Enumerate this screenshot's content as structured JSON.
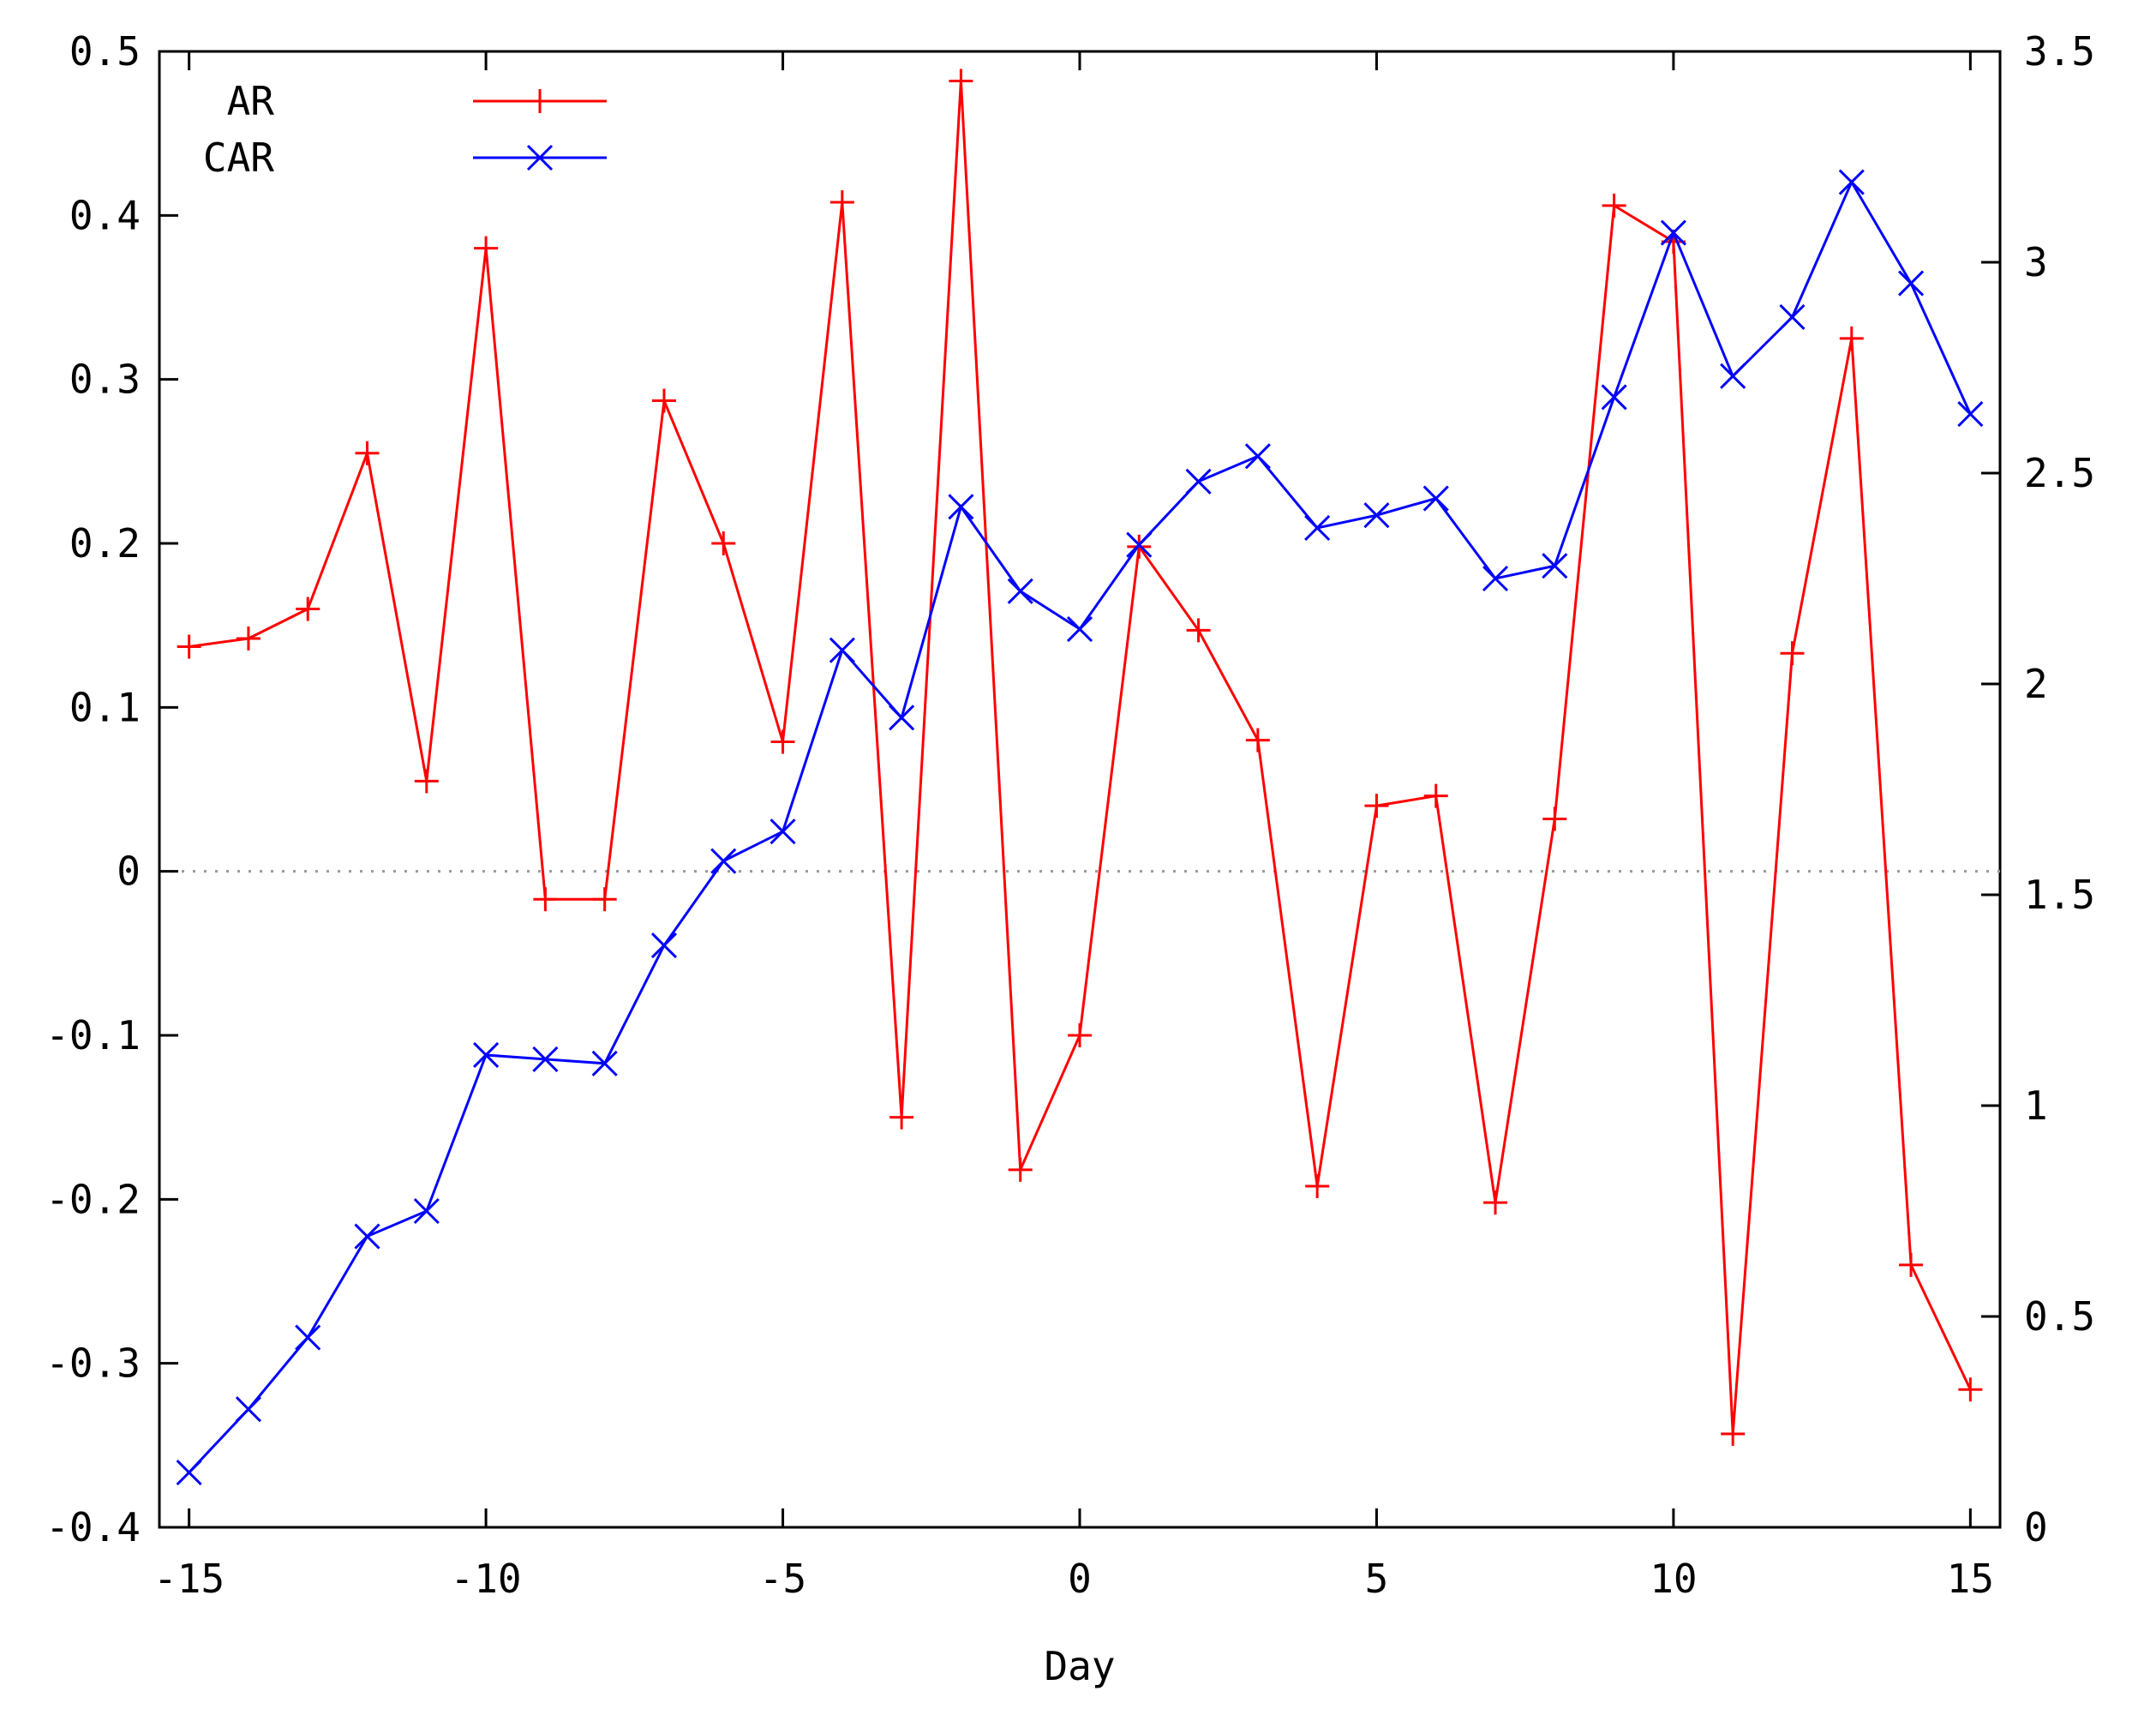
{
  "chart_data": {
    "type": "line",
    "xlabel": "Day",
    "x_ticks": [
      "-15",
      "-10",
      "-5",
      "0",
      "5",
      "10",
      "15"
    ],
    "y_left_ticks": [
      "-0.4",
      "-0.3",
      "-0.2",
      "-0.1",
      "0",
      "0.1",
      "0.2",
      "0.3",
      "0.4",
      "0.5"
    ],
    "y_right_ticks": [
      "0",
      "0.5",
      "1",
      "1.5",
      "2",
      "2.5",
      "3",
      "3.5"
    ],
    "xlim": [
      -15.5,
      15.5
    ],
    "ylim_left": [
      -0.4,
      0.5
    ],
    "ylim_right": [
      0,
      3.5
    ],
    "zero_line": {
      "y": 0,
      "style": "dotted",
      "color": "#999999"
    },
    "legend": {
      "placement": "top-left"
    },
    "x": [
      -15,
      -14,
      -13,
      -12,
      -11,
      -10,
      -9,
      -8,
      -7,
      -6,
      -5,
      -4,
      -3,
      -2,
      -1,
      0,
      1,
      2,
      3,
      4,
      5,
      6,
      7,
      8,
      9,
      10,
      11,
      12,
      13,
      14,
      15
    ],
    "series": [
      {
        "name": "AR",
        "axis": "left",
        "color": "#ff0000",
        "marker": "plus",
        "values": [
          0.137,
          0.142,
          0.16,
          0.255,
          0.055,
          0.38,
          -0.017,
          -0.017,
          0.287,
          0.2,
          0.079,
          0.408,
          -0.15,
          0.482,
          -0.182,
          -0.1,
          0.198,
          0.147,
          0.08,
          -0.192,
          0.04,
          0.046,
          -0.202,
          0.032,
          0.406,
          0.384,
          -0.343,
          0.133,
          0.325,
          -0.24,
          -0.316
        ]
      },
      {
        "name": "CAR",
        "axis": "right",
        "color": "#0000ff",
        "marker": "x",
        "values": [
          0.13,
          0.28,
          0.45,
          0.69,
          0.75,
          1.12,
          1.11,
          1.1,
          1.38,
          1.58,
          1.65,
          2.08,
          1.92,
          2.42,
          2.22,
          2.13,
          2.33,
          2.48,
          2.54,
          2.37,
          2.4,
          2.44,
          2.25,
          2.28,
          2.68,
          3.07,
          2.73,
          2.87,
          3.19,
          2.95,
          2.64
        ]
      }
    ]
  }
}
